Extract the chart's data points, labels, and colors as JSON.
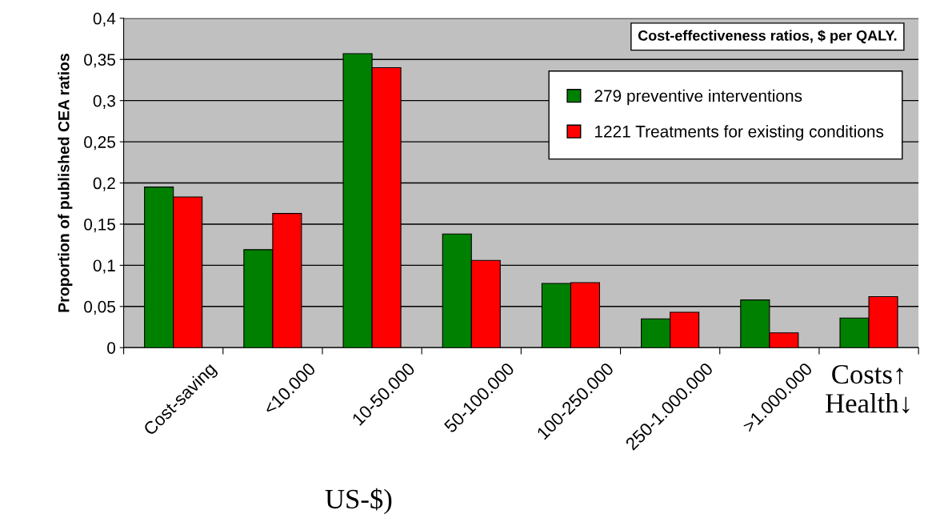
{
  "chart_data": {
    "type": "bar",
    "title": "Cost-effectiveness ratios, $ per QALY.",
    "ylabel": "Proportion of published CEA ratios",
    "categories": [
      "Cost-saving",
      "<10.000",
      "10-50.000",
      "50-100.000",
      "100-250.000",
      "250-1.000.000",
      ">1.000.000",
      "Costs↑\nHealth↓"
    ],
    "series": [
      {
        "name": "279 preventive interventions",
        "color": "#008000",
        "values": [
          0.195,
          0.119,
          0.357,
          0.138,
          0.078,
          0.035,
          0.058,
          0.036
        ]
      },
      {
        "name": "1221 Treatments for existing conditions",
        "color": "#ff0000",
        "values": [
          0.183,
          0.163,
          0.34,
          0.106,
          0.079,
          0.043,
          0.018,
          0.062
        ]
      }
    ],
    "ylim": [
      0,
      0.4
    ],
    "yticks": [
      0,
      {
        "value": 0.05,
        "label": "0,05"
      },
      {
        "value": 0.1,
        "label": "0,1"
      },
      {
        "value": 0.15,
        "label": "0,15"
      },
      {
        "value": 0.2,
        "label": "0,2"
      },
      {
        "value": 0.25,
        "label": "0,25"
      },
      {
        "value": 0.3,
        "label": "0,3"
      },
      {
        "value": 0.35,
        "label": "0,35"
      },
      {
        "value": 0.4,
        "label": "0,4"
      }
    ],
    "grid": "y",
    "legend": "top right",
    "annotations": [
      "US-$)"
    ]
  }
}
